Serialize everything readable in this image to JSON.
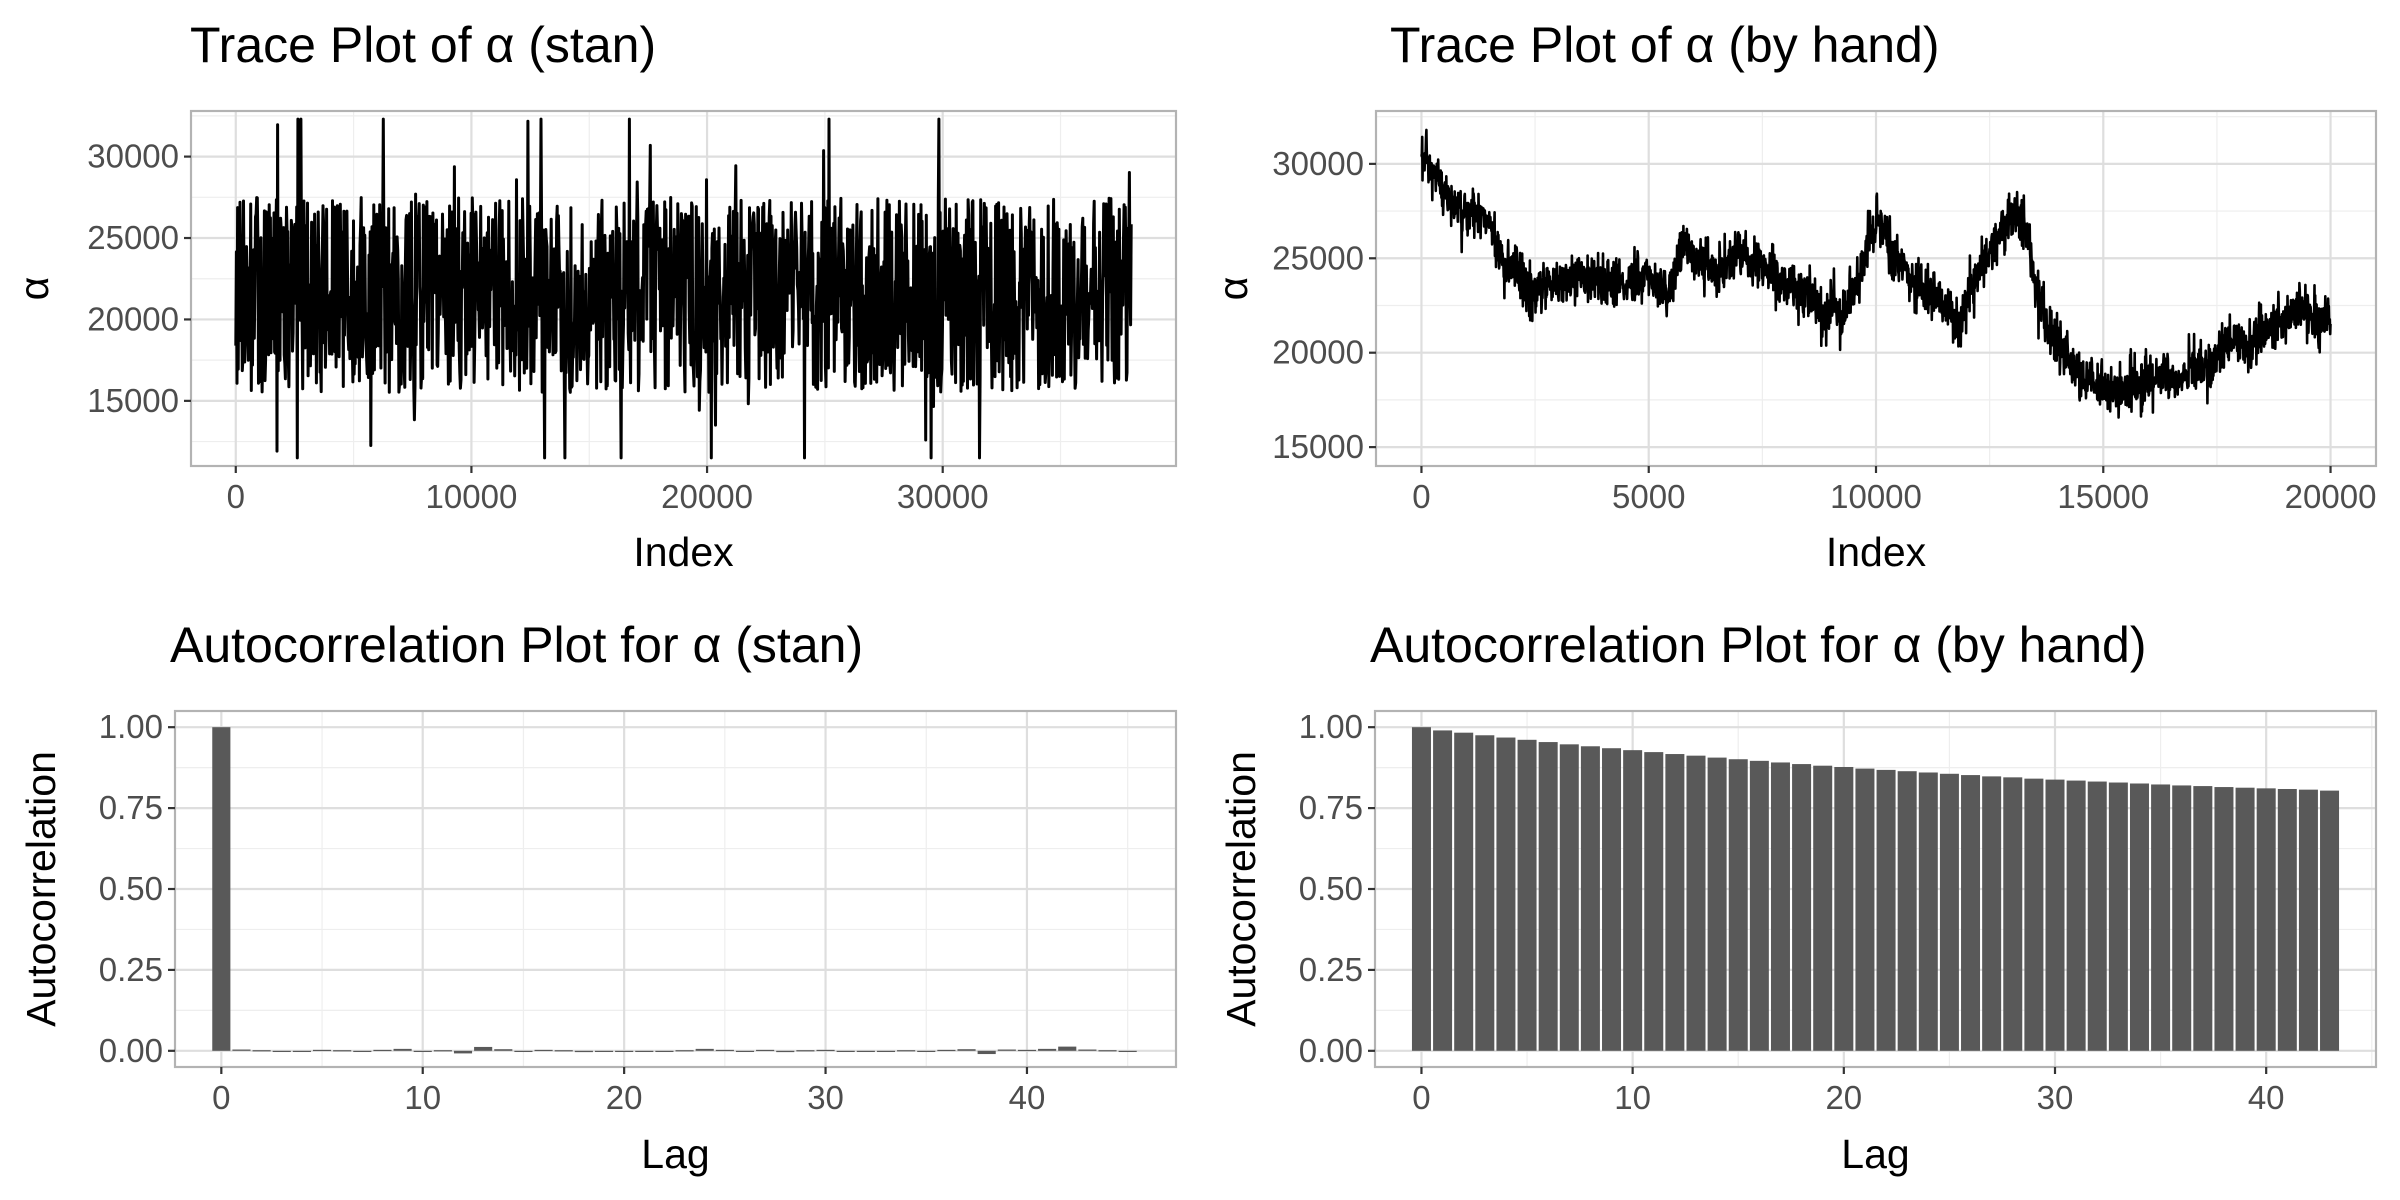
{
  "chart_data": [
    {
      "type": "line",
      "title": "Trace Plot of α (stan)",
      "xlabel": "Index",
      "ylabel": "α",
      "xlim": [
        -1900,
        39900
      ],
      "ylim": [
        11000,
        32800
      ],
      "x_ticks": [
        "0",
        "10000",
        "20000",
        "30000"
      ],
      "y_ticks": [
        "15000",
        "20000",
        "25000",
        "30000"
      ],
      "grid": true,
      "legend": "none",
      "series": [
        {
          "x_range": [
            0,
            38000
          ],
          "points": 1500,
          "mean": 21500,
          "band": [
            15500,
            27500
          ],
          "observed_min": 11500,
          "observed_max": 32300,
          "color": "#000000"
        }
      ]
    },
    {
      "type": "line",
      "title": "Trace Plot of α (by hand)",
      "xlabel": "Index",
      "ylabel": "α",
      "xlim": [
        -1000,
        21000
      ],
      "ylim": [
        14000,
        32800
      ],
      "x_ticks": [
        "0",
        "5000",
        "10000",
        "15000",
        "20000"
      ],
      "y_ticks": [
        "15000",
        "20000",
        "25000",
        "30000"
      ],
      "grid": true,
      "legend": "none",
      "series": [
        {
          "x": [
            0,
            100,
            300,
            600,
            900,
            1200,
            1500,
            1700,
            1800,
            2000,
            2300,
            2500,
            2800,
            3100,
            3500,
            4000,
            4500,
            5000,
            5500,
            5800,
            6000,
            6500,
            7000,
            7500,
            8000,
            8500,
            8800,
            9000,
            9300,
            9600,
            9900,
            10100,
            10400,
            10700,
            11000,
            11500,
            11800,
            12200,
            12600,
            13000,
            13300,
            13500,
            13800,
            14200,
            14600,
            15000,
            15400,
            15800,
            16200,
            16600,
            17000,
            17400,
            17800,
            18200,
            18600,
            19000,
            19400,
            19700,
            20000
          ],
          "y": [
            30500,
            30000,
            29200,
            28200,
            27200,
            27600,
            27000,
            25200,
            24300,
            24600,
            23500,
            23000,
            24000,
            23600,
            24200,
            23800,
            23700,
            23900,
            23400,
            26000,
            25100,
            24200,
            25300,
            24600,
            23700,
            23100,
            22000,
            22400,
            22000,
            24000,
            26300,
            27000,
            25000,
            24300,
            23300,
            22600,
            21700,
            23900,
            26000,
            27300,
            26700,
            23500,
            21200,
            19700,
            18600,
            18200,
            17900,
            18500,
            18900,
            18300,
            19500,
            19300,
            20800,
            20300,
            21300,
            21800,
            22500,
            21700,
            21800
          ],
          "observed_min": 14800,
          "observed_max": 31800,
          "color": "#000000"
        }
      ]
    },
    {
      "type": "bar",
      "title": "Autocorrelation Plot for α (stan)",
      "xlabel": "Lag",
      "ylabel": "Autocorrelation",
      "xlim": [
        -2.3,
        47.4
      ],
      "ylim": [
        -0.05,
        1.05
      ],
      "x_ticks": [
        "0",
        "10",
        "20",
        "30",
        "40"
      ],
      "y_ticks": [
        "0.00",
        "0.25",
        "0.50",
        "0.75",
        "1.00"
      ],
      "grid": true,
      "legend": "none",
      "categories": [
        0,
        1,
        2,
        3,
        4,
        5,
        6,
        7,
        8,
        9,
        10,
        11,
        12,
        13,
        14,
        15,
        16,
        17,
        18,
        19,
        20,
        21,
        22,
        23,
        24,
        25,
        26,
        27,
        28,
        29,
        30,
        31,
        32,
        33,
        34,
        35,
        36,
        37,
        38,
        39,
        40,
        41,
        42,
        43,
        44,
        45
      ],
      "values": [
        1.0,
        0.004,
        0.002,
        0.0,
        0.0,
        0.003,
        0.002,
        -0.003,
        0.003,
        0.006,
        0.0,
        0.002,
        -0.008,
        0.012,
        0.005,
        0.0,
        0.003,
        0.002,
        -0.004,
        0.0,
        0.0,
        0.0,
        0.0,
        0.002,
        0.006,
        0.003,
        0.0,
        0.003,
        -0.004,
        0.002,
        0.003,
        0.0,
        0.0,
        0.0,
        0.002,
        0.0,
        0.003,
        0.005,
        -0.01,
        0.004,
        0.003,
        0.006,
        0.013,
        0.004,
        0.002,
        -0.003
      ],
      "bar_color": "#595959"
    },
    {
      "type": "bar",
      "title": "Autocorrelation Plot for α (by hand)",
      "xlabel": "Lag",
      "ylabel": "Autocorrelation",
      "xlim": [
        -2.2,
        45.2
      ],
      "ylim": [
        -0.05,
        1.05
      ],
      "x_ticks": [
        "0",
        "10",
        "20",
        "30",
        "40"
      ],
      "y_ticks": [
        "0.00",
        "0.25",
        "0.50",
        "0.75",
        "1.00"
      ],
      "grid": true,
      "legend": "none",
      "categories": [
        0,
        1,
        2,
        3,
        4,
        5,
        6,
        7,
        8,
        9,
        10,
        11,
        12,
        13,
        14,
        15,
        16,
        17,
        18,
        19,
        20,
        21,
        22,
        23,
        24,
        25,
        26,
        27,
        28,
        29,
        30,
        31,
        32,
        33,
        34,
        35,
        36,
        37,
        38,
        39,
        40,
        41,
        42,
        43
      ],
      "values": [
        1.0,
        0.99,
        0.983,
        0.975,
        0.968,
        0.961,
        0.954,
        0.947,
        0.941,
        0.935,
        0.929,
        0.923,
        0.917,
        0.912,
        0.906,
        0.901,
        0.896,
        0.891,
        0.886,
        0.881,
        0.877,
        0.872,
        0.868,
        0.864,
        0.86,
        0.856,
        0.852,
        0.848,
        0.845,
        0.841,
        0.838,
        0.835,
        0.832,
        0.829,
        0.826,
        0.823,
        0.82,
        0.818,
        0.815,
        0.813,
        0.811,
        0.809,
        0.807,
        0.804
      ],
      "bar_color": "#595959"
    }
  ]
}
